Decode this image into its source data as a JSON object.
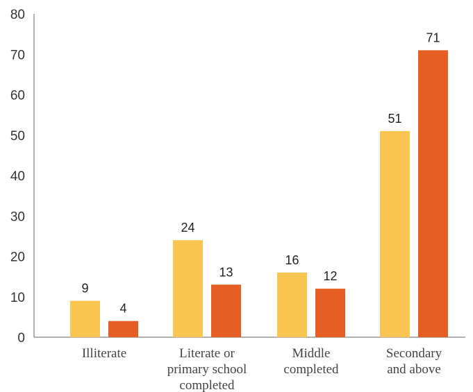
{
  "chart_data": {
    "type": "bar",
    "title": "",
    "xlabel": "",
    "ylabel": "",
    "ylim": [
      0,
      80
    ],
    "yticks": [
      0,
      10,
      20,
      30,
      40,
      50,
      60,
      70,
      80
    ],
    "grid": false,
    "legend": "none",
    "categories": [
      [
        "Illiterate"
      ],
      [
        "Literate or",
        "primary school",
        "completed"
      ],
      [
        "Middle",
        "completed"
      ],
      [
        "Secondary",
        "and above"
      ]
    ],
    "series": [
      {
        "values": [
          9,
          24,
          16,
          51
        ],
        "color": "#FAC550"
      },
      {
        "values": [
          4,
          13,
          12,
          71
        ],
        "color": "#E55F25"
      }
    ]
  }
}
